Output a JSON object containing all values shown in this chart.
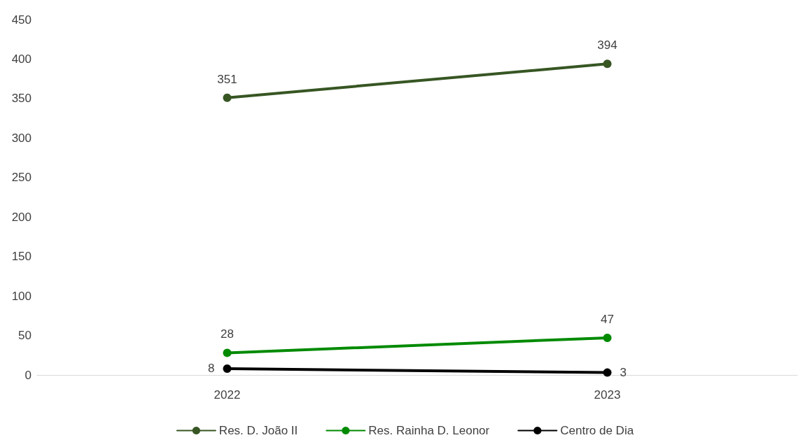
{
  "chart_data": {
    "type": "line",
    "categories": [
      "2022",
      "2023"
    ],
    "series": [
      {
        "name": "Res. D. João II",
        "color": "#375623",
        "values": [
          351,
          394
        ]
      },
      {
        "name": "Res. Rainha D. Leonor",
        "color": "#008a00",
        "values": [
          28,
          47
        ]
      },
      {
        "name": "Centro de Dia",
        "color": "#000000",
        "values": [
          8,
          3
        ]
      }
    ],
    "ylim": [
      0,
      450
    ],
    "yticks": [
      0,
      50,
      100,
      150,
      200,
      250,
      300,
      350,
      400,
      450
    ],
    "grid": false,
    "legend": "bottom",
    "data_labels": true,
    "marker": "circle",
    "line_style": "solid"
  }
}
